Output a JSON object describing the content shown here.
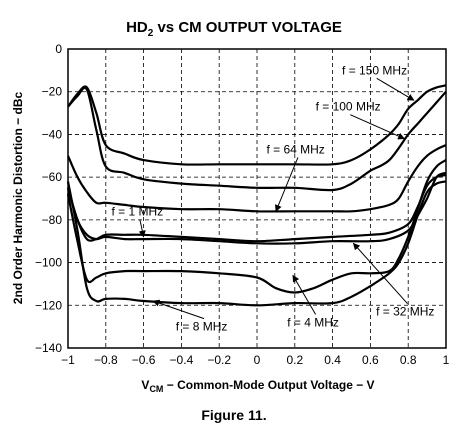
{
  "chart_data": {
    "type": "line",
    "title_main": "HD",
    "title_sub": "2",
    "title_rest": " vs CM OUTPUT VOLTAGE",
    "xlabel_v": "V",
    "xlabel_sub": "CM",
    "xlabel_rest": " − Common-Mode Output Voltage − V",
    "ylabel": "2nd Order Harmonic Distortion − dBc",
    "caption": "Figure 11.",
    "xlim": [
      -1,
      1
    ],
    "ylim": [
      -140,
      0
    ],
    "grid": true,
    "x_ticks": [
      "−1",
      "−0.8",
      "−0.6",
      "−0.4",
      "−0.2",
      "0",
      "0.2",
      "0.4",
      "0.6",
      "0.8",
      "1"
    ],
    "y_ticks": [
      "0",
      "−20",
      "−40",
      "−60",
      "−80",
      "−100",
      "−120",
      "−140"
    ],
    "series": [
      {
        "name": "f = 150 MHz",
        "x": [
          -1,
          -0.95,
          -0.9,
          -0.85,
          -0.8,
          -0.7,
          -0.6,
          -0.4,
          -0.2,
          0,
          0.2,
          0.4,
          0.5,
          0.6,
          0.7,
          0.75,
          0.8,
          0.85,
          0.9,
          0.95,
          1
        ],
        "y": [
          -27,
          -21,
          -18,
          -30,
          -45,
          -49,
          -52,
          -54,
          -54,
          -54,
          -54,
          -54,
          -52,
          -47,
          -40,
          -35,
          -28,
          -24,
          -20,
          -18,
          -17
        ]
      },
      {
        "name": "f = 100 MHz",
        "x": [
          -1,
          -0.95,
          -0.9,
          -0.85,
          -0.8,
          -0.7,
          -0.6,
          -0.4,
          -0.2,
          0,
          0.2,
          0.4,
          0.5,
          0.6,
          0.7,
          0.8,
          0.85,
          0.9,
          0.95,
          1
        ],
        "y": [
          -27,
          -22,
          -19,
          -38,
          -55,
          -58,
          -61,
          -63,
          -64,
          -65,
          -65,
          -66,
          -63,
          -57,
          -52,
          -40,
          -35,
          -30,
          -25,
          -20
        ]
      },
      {
        "name": "f = 64 MHz",
        "x": [
          -1,
          -0.95,
          -0.9,
          -0.85,
          -0.8,
          -0.7,
          -0.6,
          -0.4,
          -0.2,
          0,
          0.2,
          0.4,
          0.5,
          0.6,
          0.7,
          0.75,
          0.8,
          0.85,
          0.9,
          0.95,
          1
        ],
        "y": [
          -50,
          -60,
          -67,
          -72,
          -72,
          -73,
          -74,
          -75,
          -75,
          -76,
          -76,
          -76,
          -76,
          -75,
          -73,
          -70,
          -62,
          -55,
          -50,
          -47,
          -45
        ]
      },
      {
        "name": "f = 1 MHz",
        "x": [
          -1,
          -0.95,
          -0.9,
          -0.85,
          -0.8,
          -0.7,
          -0.6,
          -0.4,
          -0.2,
          0,
          0.2,
          0.4,
          0.6,
          0.7,
          0.8,
          0.85,
          0.9,
          0.95,
          1
        ],
        "y": [
          -65,
          -80,
          -89,
          -89,
          -87,
          -87,
          -87,
          -88,
          -89,
          -90,
          -89,
          -88,
          -87,
          -86,
          -82,
          -74,
          -64,
          -60,
          -59
        ]
      },
      {
        "name": "f = 32 MHz",
        "x": [
          -1,
          -0.95,
          -0.9,
          -0.85,
          -0.8,
          -0.7,
          -0.6,
          -0.4,
          -0.2,
          0,
          0.2,
          0.4,
          0.6,
          0.7,
          0.8,
          0.85,
          0.9,
          0.95,
          1
        ],
        "y": [
          -65,
          -80,
          -87,
          -89,
          -88,
          -89,
          -89,
          -89,
          -90,
          -91,
          -91,
          -90,
          -90,
          -89,
          -85,
          -78,
          -70,
          -60,
          -58
        ]
      },
      {
        "name": "f = 4 MHz",
        "x": [
          -1,
          -0.95,
          -0.9,
          -0.85,
          -0.8,
          -0.7,
          -0.6,
          -0.4,
          -0.2,
          0,
          0.1,
          0.2,
          0.3,
          0.4,
          0.5,
          0.6,
          0.7,
          0.75,
          0.8,
          0.85,
          0.9,
          0.95,
          1
        ],
        "y": [
          -68,
          -90,
          -108,
          -107,
          -105,
          -104,
          -104,
          -104,
          -105,
          -107,
          -112,
          -114,
          -112,
          -108,
          -105,
          -105,
          -104,
          -98,
          -88,
          -75,
          -62,
          -55,
          -52
        ]
      },
      {
        "name": "f = 8 MHz",
        "x": [
          -1,
          -0.95,
          -0.9,
          -0.85,
          -0.8,
          -0.7,
          -0.6,
          -0.4,
          -0.2,
          0,
          0.2,
          0.4,
          0.5,
          0.6,
          0.7,
          0.75,
          0.8,
          0.85,
          0.9,
          0.95,
          1
        ],
        "y": [
          -62,
          -85,
          -112,
          -118,
          -117,
          -117,
          -118,
          -119,
          -119,
          -120,
          -119,
          -119,
          -116,
          -111,
          -105,
          -100,
          -91,
          -78,
          -67,
          -63,
          -62
        ]
      }
    ],
    "annotations": [
      {
        "text": "f = 150 MHz",
        "series": "f = 150 MHz",
        "at_x": 0.83,
        "at_y": -24,
        "text_x": 0.45,
        "text_y": -10
      },
      {
        "text": "f = 100 MHz",
        "series": "f = 100 MHz",
        "at_x": 0.78,
        "at_y": -42,
        "text_x": 0.31,
        "text_y": -27
      },
      {
        "text": "f = 64 MHz",
        "series": "f = 64 MHz",
        "at_x": 0.1,
        "at_y": -76,
        "text_x": 0.05,
        "text_y": -47
      },
      {
        "text": "f = 1 MHz",
        "series": "f = 1 MHz",
        "at_x": -0.6,
        "at_y": -88,
        "text_x": -0.77,
        "text_y": -76
      },
      {
        "text": "f = 32 MHz",
        "series": "f = 32 MHz",
        "at_x": 0.51,
        "at_y": -91,
        "text_x": 0.63,
        "text_y": -123
      },
      {
        "text": "f = 4 MHz",
        "series": "f = 4 MHz",
        "at_x": 0.19,
        "at_y": -106,
        "text_x": 0.16,
        "text_y": -128
      },
      {
        "text": "f = 8 MHz",
        "series": "f = 8 MHz",
        "at_x": -0.55,
        "at_y": -118,
        "text_x": -0.43,
        "text_y": -130
      }
    ]
  }
}
